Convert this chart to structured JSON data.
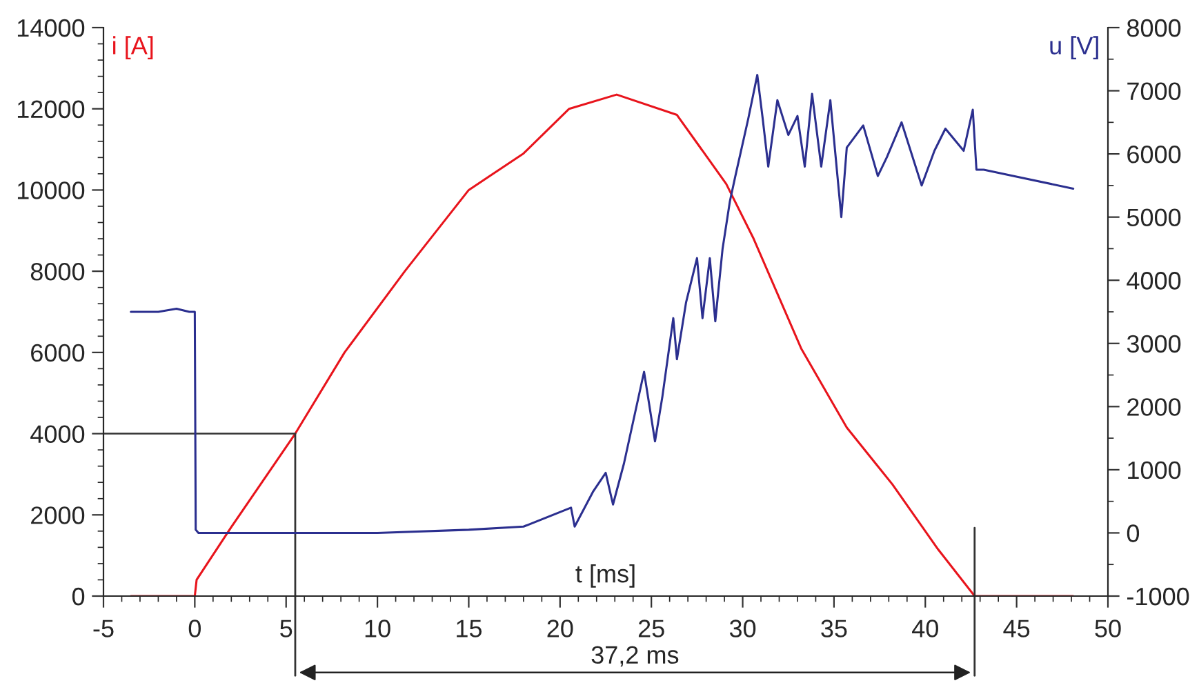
{
  "chart_data": {
    "type": "line",
    "xlabel": "t [ms]",
    "ylabel": "i [A]",
    "y2label": "u [V]",
    "series": [
      {
        "color": "#e8141c",
        "x": [
          -3.5,
          0,
          0.1,
          2.0,
          5.5,
          8.2,
          11.5,
          15,
          18,
          20.5,
          23.1,
          26.4,
          29.1,
          30.6,
          33.2,
          35.7,
          38.2,
          40.7,
          42.7,
          45,
          48.1
        ],
        "values": [
          0,
          0,
          400,
          1700,
          4000,
          6000,
          8000,
          10000,
          10900,
          12000,
          12350,
          11850,
          10150,
          8800,
          6100,
          4150,
          2750,
          1150,
          0,
          0,
          0
        ]
      },
      {
        "axis": "y2",
        "color": "#2b2f8f",
        "x": [
          -3.5,
          -2,
          -1,
          -0.3,
          0,
          0.05,
          0.2,
          5,
          10,
          15,
          18,
          20.6,
          20.8,
          21.8,
          22.5,
          22.9,
          23.5,
          24.6,
          25.2,
          25.6,
          26.2,
          26.4,
          26.9,
          27.5,
          27.8,
          28.2,
          28.5,
          28.9,
          29.3,
          29.6,
          30.3,
          30.8,
          31.1,
          31.4,
          31.9,
          32.5,
          33.0,
          33.4,
          33.8,
          34.3,
          34.8,
          35.4,
          35.7,
          36.6,
          37.4,
          37.9,
          38.7,
          39.8,
          40.5,
          41.1,
          42.1,
          42.6,
          42.8,
          43.2,
          48.1
        ],
        "values": [
          3500,
          3500,
          3550,
          3500,
          3500,
          50,
          0,
          0,
          0,
          50,
          100,
          400,
          100,
          650,
          950,
          450,
          1100,
          2550,
          1450,
          2150,
          3400,
          2750,
          3650,
          4350,
          3400,
          4350,
          3350,
          4500,
          5250,
          5650,
          6550,
          7250,
          6550,
          5800,
          6850,
          6300,
          6600,
          5800,
          6950,
          5800,
          6850,
          5000,
          6100,
          6450,
          5650,
          5950,
          6500,
          5500,
          6050,
          6400,
          6050,
          6700,
          5750,
          5750,
          5450
        ]
      }
    ],
    "xlim": [
      -5,
      50
    ],
    "xticks": [
      -5,
      0,
      5,
      10,
      15,
      20,
      25,
      30,
      35,
      40,
      45,
      50
    ],
    "ylim": [
      0,
      14000
    ],
    "yticks": [
      0,
      2000,
      4000,
      6000,
      8000,
      10000,
      12000,
      14000
    ],
    "y2lim": [
      -1000,
      8000
    ],
    "y2ticks": [
      -1000,
      0,
      1000,
      2000,
      3000,
      4000,
      5000,
      6000,
      7000,
      8000
    ],
    "ref_lines": [
      {
        "axis": "y",
        "value": 4000,
        "color": "#333333"
      },
      {
        "axis": "x",
        "value": 5.5,
        "color": "#333333"
      },
      {
        "axis": "x",
        "value": 42.7,
        "color": "#333333"
      }
    ],
    "annotations": [
      "37,2 ms"
    ],
    "grid": false,
    "legend": false,
    "marker": "none",
    "line_style": "solid"
  }
}
